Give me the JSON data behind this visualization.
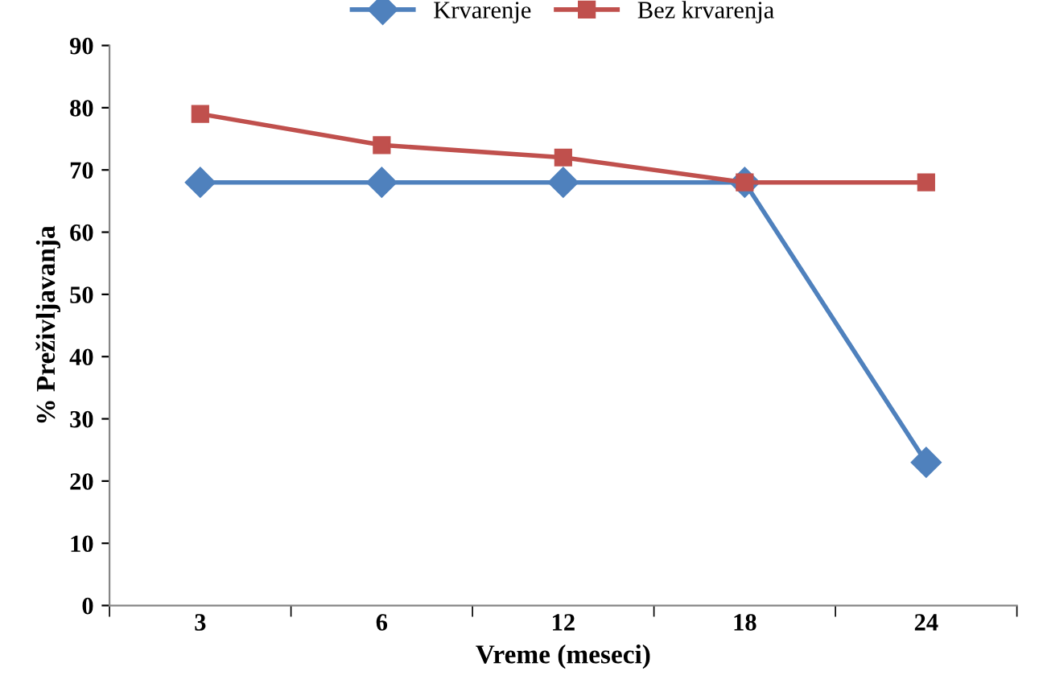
{
  "chart_data": {
    "type": "line",
    "xlabel": "Vreme (meseci)",
    "ylabel": "% Preživljavanja",
    "categories": [
      "3",
      "6",
      "12",
      "18",
      "24"
    ],
    "series": [
      {
        "name": "Krvarenje",
        "color": "#4f81bd",
        "marker": "diamond",
        "values": [
          68,
          68,
          68,
          68,
          23
        ]
      },
      {
        "name": "Bez krvarenja",
        "color": "#c0504d",
        "marker": "square",
        "values": [
          79,
          74,
          72,
          68,
          68
        ]
      }
    ],
    "ylim": [
      0,
      90
    ],
    "yticks": [
      0,
      10,
      20,
      30,
      40,
      50,
      60,
      70,
      80,
      90
    ],
    "grid": false,
    "legend": "top",
    "line_style": "solid"
  }
}
